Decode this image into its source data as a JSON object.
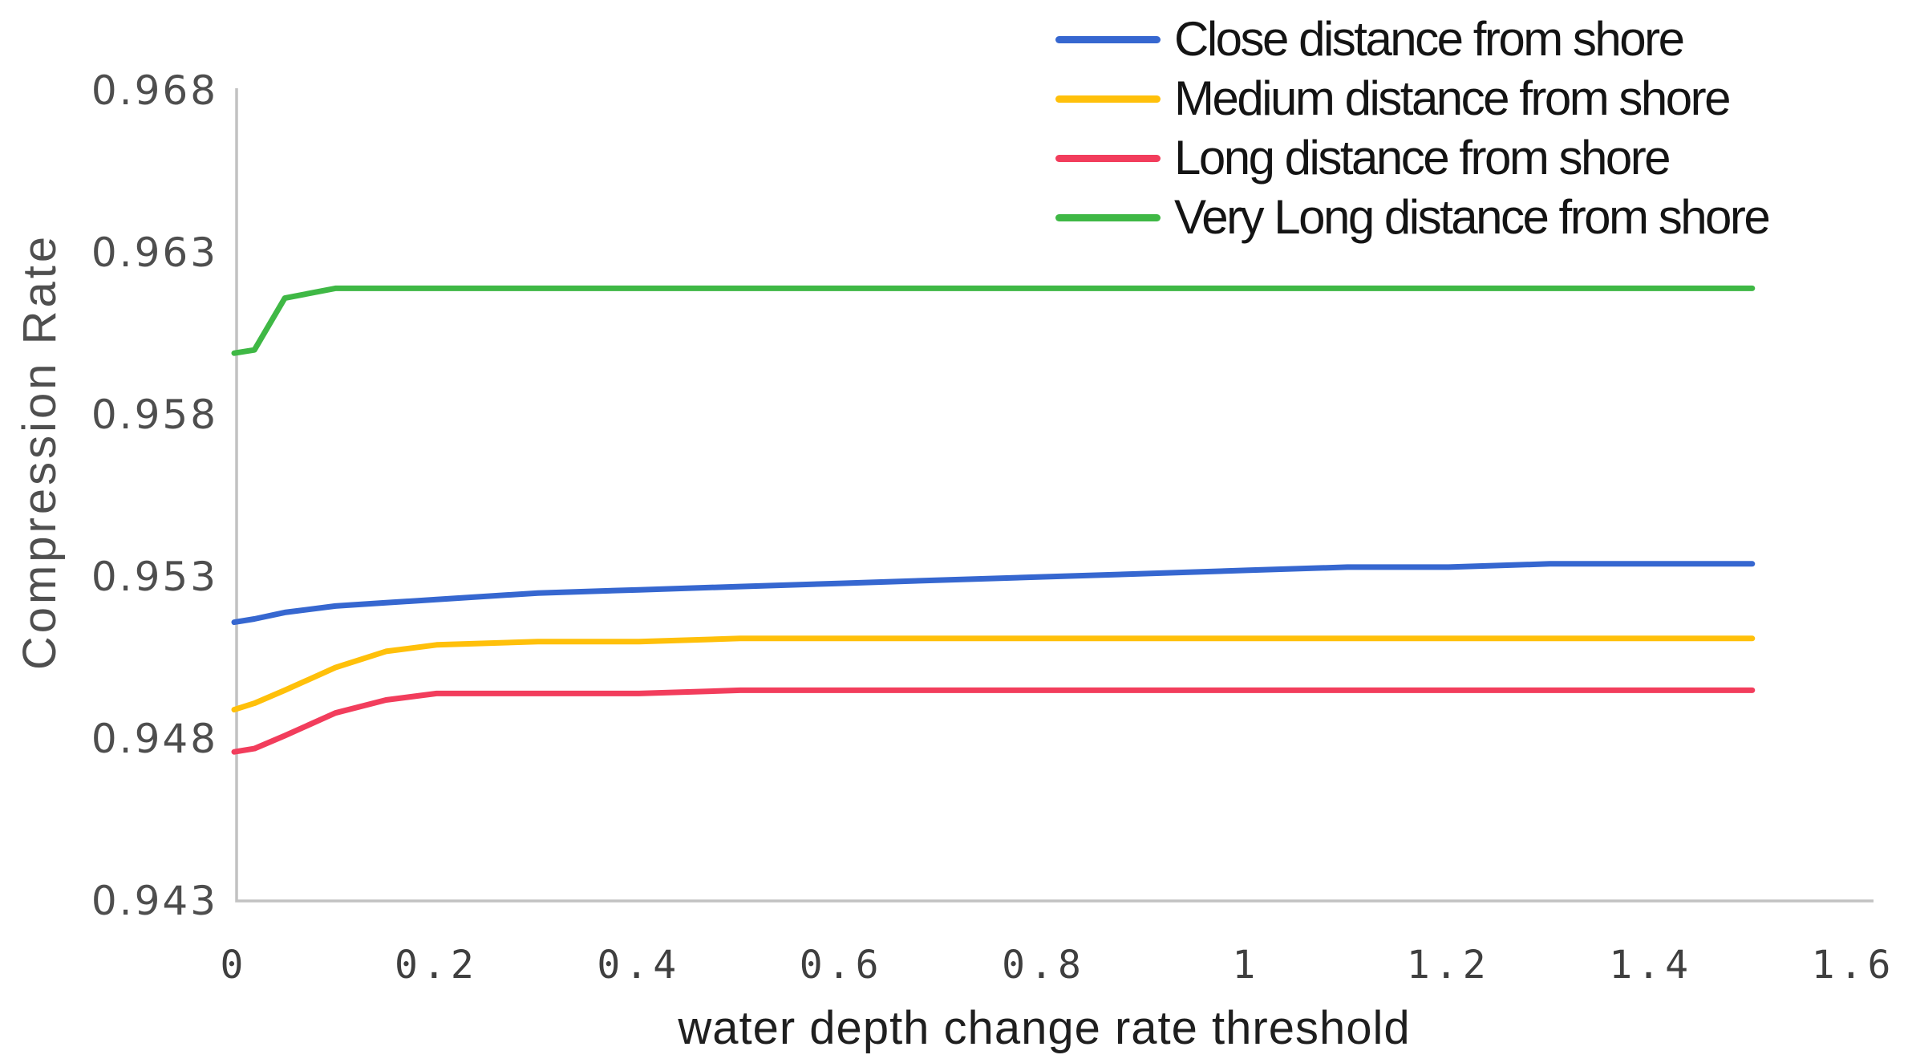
{
  "figure": {
    "background_color": "#ffffff",
    "axis_line_color": "#c2c2c2",
    "tick_label_color": "#4e4e4e",
    "x_title_color": "#1f1f1f",
    "y_title_color": "#4f4f4f",
    "legend_text_color": "#141414"
  },
  "chart_data": {
    "type": "line",
    "title": "",
    "xlabel": "water depth change rate threshold",
    "ylabel": "Compression Rate",
    "xlim": [
      0,
      1.6
    ],
    "ylim": [
      0.943,
      0.968
    ],
    "xticks": [
      "0",
      "0.2",
      "0.4",
      "0.6",
      "0.8",
      "1",
      "1.2",
      "1.4",
      "1.6"
    ],
    "xtick_values": [
      0,
      0.2,
      0.4,
      0.6,
      0.8,
      1,
      1.2,
      1.4,
      1.6
    ],
    "yticks": [
      "0.943",
      "0.948",
      "0.953",
      "0.958",
      "0.963",
      "0.968"
    ],
    "ytick_values": [
      0.943,
      0.948,
      0.953,
      0.958,
      0.963,
      0.968
    ],
    "grid": false,
    "legend_position": "top-right",
    "x": [
      0,
      0.02,
      0.05,
      0.1,
      0.15,
      0.2,
      0.3,
      0.4,
      0.5,
      0.6,
      0.7,
      0.8,
      0.9,
      1.0,
      1.1,
      1.2,
      1.3,
      1.4,
      1.5
    ],
    "series": [
      {
        "name": "Close distance from shore",
        "color": "#3667d0",
        "values": [
          0.9516,
          0.9517,
          0.9519,
          0.9521,
          0.9522,
          0.9523,
          0.9525,
          0.9526,
          0.9527,
          0.9528,
          0.9529,
          0.953,
          0.9531,
          0.9532,
          0.9533,
          0.9533,
          0.9534,
          0.9534,
          0.9534
        ]
      },
      {
        "name": "Medium distance from shore",
        "color": "#ffc00a",
        "values": [
          0.9489,
          0.9491,
          0.9495,
          0.9502,
          0.9507,
          0.9509,
          0.951,
          0.951,
          0.9511,
          0.9511,
          0.9511,
          0.9511,
          0.9511,
          0.9511,
          0.9511,
          0.9511,
          0.9511,
          0.9511,
          0.9511
        ]
      },
      {
        "name": "Long distance from shore",
        "color": "#f23d5c",
        "values": [
          0.9476,
          0.9477,
          0.9481,
          0.9488,
          0.9492,
          0.9494,
          0.9494,
          0.9494,
          0.9495,
          0.9495,
          0.9495,
          0.9495,
          0.9495,
          0.9495,
          0.9495,
          0.9495,
          0.9495,
          0.9495,
          0.9495
        ]
      },
      {
        "name": "Very Long distance from shore",
        "color": "#3fb845",
        "values": [
          0.9599,
          0.96,
          0.9616,
          0.9619,
          0.9619,
          0.9619,
          0.9619,
          0.9619,
          0.9619,
          0.9619,
          0.9619,
          0.9619,
          0.9619,
          0.9619,
          0.9619,
          0.9619,
          0.9619,
          0.9619,
          0.9619
        ]
      }
    ]
  }
}
